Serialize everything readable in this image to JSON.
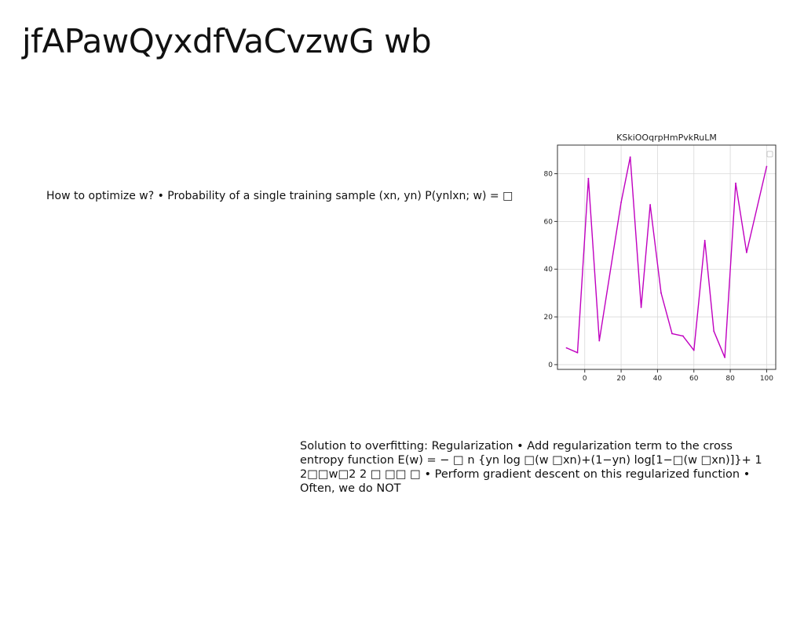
{
  "slide": {
    "title": "jfAPawQyxdfVaCvzwG wb"
  },
  "text_blocks": [
    {
      "id": "block1",
      "text": "How to optimize w? • Probability of a single training sample (xn, yn) P(ynlxn; w) = □"
    },
    {
      "id": "block2",
      "text": "Solution to overfitting: Regularization • Add regularization term to the cross entropy function E(w) = − □ n {yn log □(w □xn)+(1−yn) log[1−□(w □xn)]}+ 1 2□□w□2 2 □ □□ □ • Perform gradient descent on this regularized function • Often, we do NOT"
    }
  ],
  "chart_data": {
    "type": "line",
    "title": "KSkiOOqrpHmPvkRuLM",
    "xlabel": "",
    "ylabel": "",
    "xlim": [
      -15,
      105
    ],
    "ylim": [
      -2,
      92
    ],
    "xticks": [
      0,
      20,
      40,
      60,
      80,
      100
    ],
    "yticks": [
      0,
      20,
      40,
      60,
      80
    ],
    "grid": true,
    "legend": "top-right",
    "line_color": "#c000c0",
    "series": [
      {
        "x": [
          -10,
          -4,
          2,
          8,
          20,
          25,
          31,
          36,
          42,
          48,
          54,
          60,
          66,
          71,
          77,
          83,
          89,
          100
        ],
        "y": [
          7,
          5,
          78,
          10,
          68,
          87,
          24,
          67,
          30,
          13,
          12,
          6,
          52,
          14,
          3,
          76,
          47,
          83
        ]
      }
    ]
  }
}
